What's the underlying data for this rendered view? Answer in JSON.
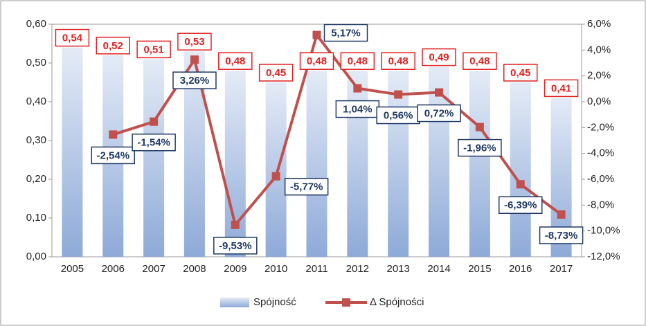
{
  "chart_data": {
    "type": "combo",
    "categories": [
      "2005",
      "2006",
      "2007",
      "2008",
      "2009",
      "2010",
      "2011",
      "2012",
      "2013",
      "2014",
      "2015",
      "2016",
      "2017"
    ],
    "series": [
      {
        "name": "Spójność",
        "type": "bar",
        "color": "#8eaad8",
        "values": [
          0.54,
          0.52,
          0.51,
          0.53,
          0.48,
          0.45,
          0.48,
          0.48,
          0.48,
          0.49,
          0.48,
          0.45,
          0.41
        ],
        "value_labels": [
          "0,54",
          "0,52",
          "0,51",
          "0,53",
          "0,48",
          "0,45",
          "0,48",
          "0,48",
          "0,48",
          "0,49",
          "0,48",
          "0,45",
          "0,41"
        ]
      },
      {
        "name": "Δ Spójności",
        "type": "line",
        "axis": "y2",
        "color": "#c0504d",
        "values": [
          null,
          -2.54,
          -1.54,
          3.26,
          -9.53,
          -5.77,
          5.17,
          1.04,
          0.56,
          0.72,
          -1.96,
          -6.39,
          -8.73
        ],
        "value_labels": [
          null,
          "-2,54%",
          "-1,54%",
          "3,26%",
          "-9,53%",
          "-5,77%",
          "5,17%",
          "1,04%",
          "0,56%",
          "0,72%",
          "-1,96%",
          "-6,39%",
          "-8,73%"
        ]
      }
    ],
    "ylim": [
      0,
      0.6
    ],
    "yticks": [
      {
        "value": 0,
        "label": "0,00"
      },
      {
        "value": 0.1,
        "label": "0,10"
      },
      {
        "value": 0.2,
        "label": "0,20"
      },
      {
        "value": 0.3,
        "label": "0,30"
      },
      {
        "value": 0.4,
        "label": "0,40"
      },
      {
        "value": 0.5,
        "label": "0,50"
      },
      {
        "value": 0.6,
        "label": "0,60"
      }
    ],
    "y2lim": [
      -12,
      6
    ],
    "y2ticks": [
      {
        "value": -12,
        "label": "-12,0%"
      },
      {
        "value": -10,
        "label": "-10,0%"
      },
      {
        "value": -8,
        "label": "-8,0%"
      },
      {
        "value": -6,
        "label": "-6,0%"
      },
      {
        "value": -4,
        "label": "-4,0%"
      },
      {
        "value": -2,
        "label": "-2,0%"
      },
      {
        "value": 0,
        "label": "0,0%"
      },
      {
        "value": 2,
        "label": "2,0%"
      },
      {
        "value": 4,
        "label": "4,0%"
      },
      {
        "value": 6,
        "label": "6,0%"
      }
    ],
    "legend": "bottom"
  }
}
